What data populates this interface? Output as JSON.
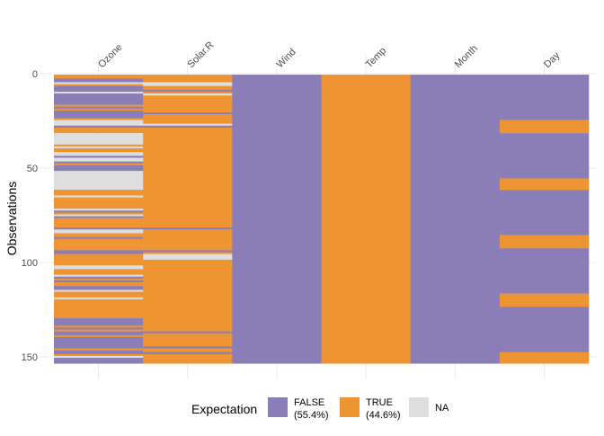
{
  "chart_data": {
    "type": "heatmap",
    "title": "",
    "xlabel": "",
    "ylabel": "Observations",
    "columns": [
      "Ozone",
      "Solar.R",
      "Wind",
      "Temp",
      "Month",
      "Day"
    ],
    "y_ticks": [
      0,
      50,
      100,
      150
    ],
    "ylim": [
      0,
      153
    ],
    "grid": true,
    "legend": {
      "title": "Expectation",
      "position": "bottom",
      "entries": [
        {
          "key": "false",
          "label_line1": "FALSE",
          "label_line2": "(55.4%)",
          "color": "#8A7DB8"
        },
        {
          "key": "true",
          "label_line1": "TRUE",
          "label_line2": "(44.6%)",
          "color": "#EE9433"
        },
        {
          "key": "na",
          "label_line1": "NA",
          "label_line2": "",
          "color": "#DEDEDE"
        }
      ]
    },
    "values": {
      "Ozone": [
        true,
        true,
        false,
        false,
        null,
        true,
        false,
        false,
        false,
        null,
        false,
        false,
        false,
        false,
        false,
        false,
        true,
        false,
        true,
        false,
        false,
        false,
        false,
        true,
        null,
        null,
        null,
        false,
        true,
        true,
        true,
        null,
        null,
        null,
        null,
        null,
        null,
        true,
        null,
        true,
        true,
        null,
        null,
        false,
        null,
        null,
        false,
        true,
        false,
        false,
        false,
        null,
        null,
        null,
        null,
        null,
        null,
        null,
        null,
        null,
        null,
        true,
        true,
        true,
        null,
        true,
        true,
        true,
        true,
        true,
        true,
        null,
        false,
        true,
        null,
        false,
        true,
        true,
        true,
        true,
        true,
        false,
        null,
        null,
        true,
        true,
        false,
        true,
        true,
        true,
        true,
        true,
        true,
        false,
        false,
        true,
        true,
        true,
        true,
        true,
        true,
        null,
        null,
        true,
        true,
        true,
        null,
        false,
        true,
        false,
        true,
        true,
        false,
        false,
        null,
        true,
        true,
        true,
        null,
        true,
        true,
        true,
        true,
        true,
        true,
        true,
        true,
        true,
        true,
        false,
        false,
        false,
        false,
        true,
        false,
        true,
        false,
        false,
        true,
        false,
        false,
        false,
        false,
        false,
        false,
        true,
        false,
        false,
        true,
        null,
        false,
        false,
        false
      ],
      "Solar.R": [
        true,
        true,
        true,
        true,
        null,
        null,
        true,
        true,
        false,
        true,
        null,
        true,
        true,
        true,
        true,
        true,
        true,
        true,
        true,
        true,
        false,
        true,
        true,
        true,
        true,
        true,
        null,
        false,
        true,
        true,
        true,
        true,
        true,
        true,
        true,
        true,
        true,
        true,
        true,
        true,
        true,
        true,
        true,
        true,
        true,
        true,
        true,
        true,
        true,
        true,
        true,
        true,
        true,
        true,
        true,
        true,
        true,
        true,
        true,
        true,
        true,
        true,
        true,
        true,
        true,
        true,
        true,
        true,
        true,
        true,
        true,
        true,
        true,
        true,
        true,
        true,
        true,
        true,
        true,
        true,
        true,
        false,
        true,
        true,
        true,
        true,
        true,
        true,
        true,
        true,
        true,
        true,
        true,
        false,
        true,
        null,
        null,
        null,
        true,
        true,
        true,
        true,
        true,
        true,
        true,
        true,
        true,
        true,
        true,
        true,
        true,
        true,
        true,
        true,
        true,
        true,
        true,
        true,
        true,
        true,
        true,
        true,
        true,
        true,
        true,
        true,
        true,
        true,
        true,
        true,
        true,
        true,
        true,
        true,
        true,
        true,
        false,
        true,
        true,
        true,
        true,
        true,
        true,
        true,
        false,
        true,
        true,
        false,
        true,
        true,
        true,
        true,
        true
      ],
      "Wind": [
        false,
        false,
        false,
        false,
        false,
        false,
        false,
        false,
        false,
        false,
        false,
        false,
        false,
        false,
        false,
        false,
        false,
        false,
        false,
        false,
        false,
        false,
        false,
        false,
        false,
        false,
        false,
        false,
        false,
        false,
        false,
        false,
        false,
        false,
        false,
        false,
        false,
        false,
        false,
        false,
        false,
        false,
        false,
        false,
        false,
        false,
        false,
        false,
        false,
        false,
        false,
        false,
        false,
        false,
        false,
        false,
        false,
        false,
        false,
        false,
        false,
        false,
        false,
        false,
        false,
        false,
        false,
        false,
        false,
        false,
        false,
        false,
        false,
        false,
        false,
        false,
        false,
        false,
        false,
        false,
        false,
        false,
        false,
        false,
        false,
        false,
        false,
        false,
        false,
        false,
        false,
        false,
        false,
        false,
        false,
        false,
        false,
        false,
        false,
        false,
        false,
        false,
        false,
        false,
        false,
        false,
        false,
        false,
        false,
        false,
        false,
        false,
        false,
        false,
        false,
        false,
        false,
        false,
        false,
        false,
        false,
        false,
        false,
        false,
        false,
        false,
        false,
        false,
        false,
        false,
        false,
        false,
        false,
        false,
        false,
        false,
        false,
        false,
        false,
        false,
        false,
        false,
        false,
        false,
        false,
        false,
        false,
        false,
        false,
        false,
        false,
        false,
        false
      ],
      "Temp": [
        true,
        true,
        true,
        true,
        true,
        true,
        true,
        true,
        true,
        true,
        true,
        true,
        true,
        true,
        true,
        true,
        true,
        true,
        true,
        true,
        true,
        true,
        true,
        true,
        true,
        true,
        true,
        true,
        true,
        true,
        true,
        true,
        true,
        true,
        true,
        true,
        true,
        true,
        true,
        true,
        true,
        true,
        true,
        true,
        true,
        true,
        true,
        true,
        true,
        true,
        true,
        true,
        true,
        true,
        true,
        true,
        true,
        true,
        true,
        true,
        true,
        true,
        true,
        true,
        true,
        true,
        true,
        true,
        true,
        true,
        true,
        true,
        true,
        true,
        true,
        true,
        true,
        true,
        true,
        true,
        true,
        true,
        true,
        true,
        true,
        true,
        true,
        true,
        true,
        true,
        true,
        true,
        true,
        true,
        true,
        true,
        true,
        true,
        true,
        true,
        true,
        true,
        true,
        true,
        true,
        true,
        true,
        true,
        true,
        true,
        true,
        true,
        true,
        true,
        true,
        true,
        true,
        true,
        true,
        true,
        true,
        true,
        true,
        true,
        true,
        true,
        true,
        true,
        true,
        true,
        true,
        true,
        true,
        true,
        true,
        true,
        true,
        true,
        true,
        true,
        true,
        true,
        true,
        true,
        true,
        true,
        true,
        true,
        true,
        true,
        true,
        true,
        true
      ],
      "Month": [
        false,
        false,
        false,
        false,
        false,
        false,
        false,
        false,
        false,
        false,
        false,
        false,
        false,
        false,
        false,
        false,
        false,
        false,
        false,
        false,
        false,
        false,
        false,
        false,
        false,
        false,
        false,
        false,
        false,
        false,
        false,
        false,
        false,
        false,
        false,
        false,
        false,
        false,
        false,
        false,
        false,
        false,
        false,
        false,
        false,
        false,
        false,
        false,
        false,
        false,
        false,
        false,
        false,
        false,
        false,
        false,
        false,
        false,
        false,
        false,
        false,
        false,
        false,
        false,
        false,
        false,
        false,
        false,
        false,
        false,
        false,
        false,
        false,
        false,
        false,
        false,
        false,
        false,
        false,
        false,
        false,
        false,
        false,
        false,
        false,
        false,
        false,
        false,
        false,
        false,
        false,
        false,
        false,
        false,
        false,
        false,
        false,
        false,
        false,
        false,
        false,
        false,
        false,
        false,
        false,
        false,
        false,
        false,
        false,
        false,
        false,
        false,
        false,
        false,
        false,
        false,
        false,
        false,
        false,
        false,
        false,
        false,
        false,
        false,
        false,
        false,
        false,
        false,
        false,
        false,
        false,
        false,
        false,
        false,
        false,
        false,
        false,
        false,
        false,
        false,
        false,
        false,
        false,
        false,
        false,
        false,
        false,
        false,
        false,
        false,
        false,
        false,
        false
      ],
      "Day": [
        false,
        false,
        false,
        false,
        false,
        false,
        false,
        false,
        false,
        false,
        false,
        false,
        false,
        false,
        false,
        false,
        false,
        false,
        false,
        false,
        false,
        false,
        false,
        false,
        true,
        true,
        true,
        true,
        true,
        true,
        true,
        false,
        false,
        false,
        false,
        false,
        false,
        false,
        false,
        false,
        false,
        false,
        false,
        false,
        false,
        false,
        false,
        false,
        false,
        false,
        false,
        false,
        false,
        false,
        false,
        true,
        true,
        true,
        true,
        true,
        true,
        false,
        false,
        false,
        false,
        false,
        false,
        false,
        false,
        false,
        false,
        false,
        false,
        false,
        false,
        false,
        false,
        false,
        false,
        false,
        false,
        false,
        false,
        false,
        false,
        true,
        true,
        true,
        true,
        true,
        true,
        true,
        false,
        false,
        false,
        false,
        false,
        false,
        false,
        false,
        false,
        false,
        false,
        false,
        false,
        false,
        false,
        false,
        false,
        false,
        false,
        false,
        false,
        false,
        false,
        false,
        true,
        true,
        true,
        true,
        true,
        true,
        true,
        false,
        false,
        false,
        false,
        false,
        false,
        false,
        false,
        false,
        false,
        false,
        false,
        false,
        false,
        false,
        false,
        false,
        false,
        false,
        false,
        false,
        false,
        false,
        false,
        true,
        true,
        true,
        true,
        true,
        true
      ]
    }
  }
}
